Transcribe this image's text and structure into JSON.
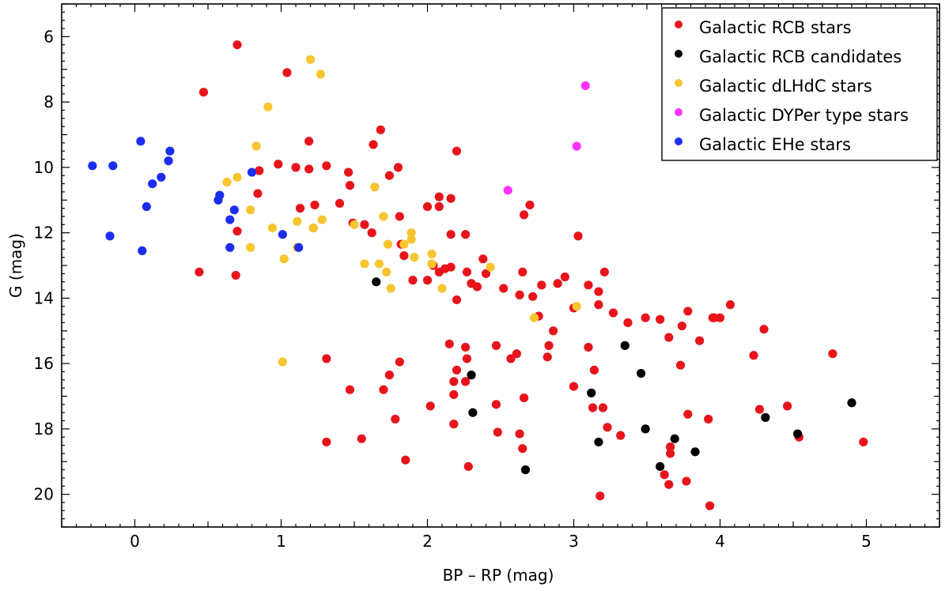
{
  "chart_data": {
    "type": "scatter",
    "title": "",
    "xlabel": "BP – RP  (mag)",
    "ylabel": "G (mag)",
    "xlim": [
      -0.5,
      5.5
    ],
    "ylim": [
      21.0,
      5.0
    ],
    "y_inverted": true,
    "xticks": [
      0,
      1,
      2,
      3,
      4,
      5
    ],
    "yticks": [
      6,
      8,
      10,
      12,
      14,
      16,
      18,
      20
    ],
    "grid": false,
    "legend_position": "top-right",
    "series": [
      {
        "name": "Galactic RCB stars",
        "color": "#e8141c",
        "points": [
          [
            0.7,
            6.25
          ],
          [
            1.04,
            7.1
          ],
          [
            0.47,
            7.7
          ],
          [
            1.68,
            8.85
          ],
          [
            1.19,
            9.2
          ],
          [
            1.63,
            9.3
          ],
          [
            2.2,
            9.5
          ],
          [
            0.98,
            9.9
          ],
          [
            1.1,
            10.0
          ],
          [
            1.19,
            10.05
          ],
          [
            1.31,
            9.95
          ],
          [
            0.85,
            10.1
          ],
          [
            1.8,
            10.0
          ],
          [
            1.46,
            10.15
          ],
          [
            1.74,
            10.25
          ],
          [
            1.47,
            10.55
          ],
          [
            0.84,
            10.8
          ],
          [
            2.08,
            10.9
          ],
          [
            2.16,
            10.95
          ],
          [
            1.4,
            11.1
          ],
          [
            1.23,
            11.15
          ],
          [
            2.0,
            11.2
          ],
          [
            2.08,
            11.2
          ],
          [
            1.13,
            11.25
          ],
          [
            2.7,
            11.15
          ],
          [
            2.66,
            11.45
          ],
          [
            1.81,
            11.5
          ],
          [
            0.7,
            11.95
          ],
          [
            1.49,
            11.7
          ],
          [
            1.57,
            11.75
          ],
          [
            1.22,
            11.85
          ],
          [
            1.62,
            12.0
          ],
          [
            2.16,
            12.05
          ],
          [
            2.26,
            12.05
          ],
          [
            3.03,
            12.1
          ],
          [
            1.82,
            12.35
          ],
          [
            1.84,
            12.7
          ],
          [
            2.04,
            13.0
          ],
          [
            2.38,
            12.8
          ],
          [
            2.16,
            13.05
          ],
          [
            2.12,
            13.1
          ],
          [
            2.08,
            13.2
          ],
          [
            2.27,
            13.2
          ],
          [
            2.4,
            13.25
          ],
          [
            2.65,
            13.2
          ],
          [
            2.94,
            13.35
          ],
          [
            3.21,
            13.2
          ],
          [
            0.44,
            13.2
          ],
          [
            0.69,
            13.3
          ],
          [
            1.9,
            13.45
          ],
          [
            2.0,
            13.45
          ],
          [
            2.3,
            13.55
          ],
          [
            2.34,
            13.65
          ],
          [
            2.52,
            13.7
          ],
          [
            2.78,
            13.6
          ],
          [
            2.89,
            13.55
          ],
          [
            3.1,
            13.6
          ],
          [
            3.17,
            13.8
          ],
          [
            2.63,
            13.9
          ],
          [
            2.72,
            13.95
          ],
          [
            2.2,
            14.05
          ],
          [
            3.17,
            14.2
          ],
          [
            3.0,
            14.3
          ],
          [
            3.27,
            14.45
          ],
          [
            2.76,
            14.55
          ],
          [
            3.37,
            14.75
          ],
          [
            3.49,
            14.6
          ],
          [
            3.59,
            14.65
          ],
          [
            3.78,
            14.4
          ],
          [
            3.96,
            14.6
          ],
          [
            4.0,
            14.6
          ],
          [
            4.07,
            14.2
          ],
          [
            3.74,
            14.85
          ],
          [
            3.95,
            14.6
          ],
          [
            4.3,
            14.95
          ],
          [
            2.86,
            15.0
          ],
          [
            3.65,
            15.2
          ],
          [
            3.86,
            15.3
          ],
          [
            2.15,
            15.4
          ],
          [
            2.47,
            15.45
          ],
          [
            2.26,
            15.5
          ],
          [
            2.83,
            15.45
          ],
          [
            3.1,
            15.5
          ],
          [
            2.61,
            15.7
          ],
          [
            2.57,
            15.85
          ],
          [
            2.27,
            15.85
          ],
          [
            2.82,
            15.8
          ],
          [
            1.31,
            15.85
          ],
          [
            1.81,
            15.95
          ],
          [
            3.73,
            16.05
          ],
          [
            4.23,
            15.75
          ],
          [
            4.77,
            15.7
          ],
          [
            2.2,
            16.2
          ],
          [
            3.14,
            16.2
          ],
          [
            1.74,
            16.35
          ],
          [
            2.26,
            16.55
          ],
          [
            2.18,
            16.55
          ],
          [
            1.47,
            16.8
          ],
          [
            1.7,
            16.8
          ],
          [
            2.18,
            16.95
          ],
          [
            2.66,
            17.05
          ],
          [
            3.0,
            16.7
          ],
          [
            2.47,
            17.25
          ],
          [
            2.02,
            17.3
          ],
          [
            3.13,
            17.35
          ],
          [
            3.2,
            17.35
          ],
          [
            4.27,
            17.4
          ],
          [
            4.46,
            17.3
          ],
          [
            1.78,
            17.7
          ],
          [
            3.78,
            17.55
          ],
          [
            3.92,
            17.7
          ],
          [
            2.18,
            17.85
          ],
          [
            3.23,
            17.95
          ],
          [
            3.32,
            18.2
          ],
          [
            2.48,
            18.1
          ],
          [
            2.63,
            18.15
          ],
          [
            1.55,
            18.3
          ],
          [
            1.31,
            18.4
          ],
          [
            3.66,
            18.55
          ],
          [
            3.66,
            18.75
          ],
          [
            4.54,
            18.25
          ],
          [
            4.98,
            18.4
          ],
          [
            2.65,
            18.6
          ],
          [
            1.85,
            18.95
          ],
          [
            2.28,
            19.15
          ],
          [
            3.62,
            19.4
          ],
          [
            3.65,
            19.7
          ],
          [
            3.77,
            19.6
          ],
          [
            3.18,
            20.05
          ],
          [
            3.93,
            20.35
          ]
        ]
      },
      {
        "name": "Galactic RCB candidates",
        "color": "#000000",
        "points": [
          [
            1.65,
            13.5
          ],
          [
            3.35,
            15.45
          ],
          [
            2.3,
            16.35
          ],
          [
            3.46,
            16.3
          ],
          [
            3.12,
            16.9
          ],
          [
            4.9,
            17.2
          ],
          [
            2.31,
            17.5
          ],
          [
            4.31,
            17.65
          ],
          [
            3.49,
            18.0
          ],
          [
            4.53,
            18.15
          ],
          [
            3.69,
            18.3
          ],
          [
            3.17,
            18.4
          ],
          [
            3.83,
            18.7
          ],
          [
            3.59,
            19.15
          ],
          [
            2.67,
            19.25
          ]
        ]
      },
      {
        "name": "Galactic dLHdC stars",
        "color": "#f7c52e",
        "points": [
          [
            1.2,
            6.7
          ],
          [
            1.27,
            7.15
          ],
          [
            0.91,
            8.15
          ],
          [
            0.83,
            9.35
          ],
          [
            0.63,
            10.45
          ],
          [
            0.7,
            10.3
          ],
          [
            1.64,
            10.6
          ],
          [
            0.79,
            11.3
          ],
          [
            1.7,
            11.5
          ],
          [
            1.28,
            11.6
          ],
          [
            1.11,
            11.65
          ],
          [
            1.5,
            11.75
          ],
          [
            1.22,
            11.85
          ],
          [
            0.94,
            11.85
          ],
          [
            1.89,
            12.0
          ],
          [
            1.89,
            12.2
          ],
          [
            1.84,
            12.35
          ],
          [
            1.73,
            12.35
          ],
          [
            0.79,
            12.45
          ],
          [
            1.11,
            12.45
          ],
          [
            2.03,
            12.65
          ],
          [
            1.02,
            12.8
          ],
          [
            1.91,
            12.75
          ],
          [
            1.57,
            12.95
          ],
          [
            1.67,
            12.95
          ],
          [
            2.03,
            12.95
          ],
          [
            2.43,
            13.05
          ],
          [
            1.72,
            13.2
          ],
          [
            1.75,
            13.7
          ],
          [
            2.1,
            13.7
          ],
          [
            3.02,
            14.25
          ],
          [
            2.73,
            14.6
          ],
          [
            1.01,
            15.95
          ]
        ]
      },
      {
        "name": "Galactic DYPer type stars",
        "color": "#ff33ff",
        "points": [
          [
            3.08,
            7.5
          ],
          [
            3.02,
            9.35
          ],
          [
            2.55,
            10.7
          ]
        ]
      },
      {
        "name": "Galactic EHe stars",
        "color": "#1b2ef0",
        "points": [
          [
            0.04,
            9.2
          ],
          [
            0.24,
            9.5
          ],
          [
            0.23,
            9.8
          ],
          [
            -0.29,
            9.95
          ],
          [
            -0.15,
            9.95
          ],
          [
            0.8,
            10.15
          ],
          [
            0.18,
            10.3
          ],
          [
            0.12,
            10.5
          ],
          [
            0.58,
            10.85
          ],
          [
            0.57,
            11.0
          ],
          [
            0.08,
            11.2
          ],
          [
            0.68,
            11.3
          ],
          [
            0.65,
            11.6
          ],
          [
            -0.17,
            12.1
          ],
          [
            1.01,
            12.05
          ],
          [
            0.65,
            12.45
          ],
          [
            1.12,
            12.45
          ],
          [
            0.05,
            12.55
          ]
        ]
      }
    ]
  }
}
